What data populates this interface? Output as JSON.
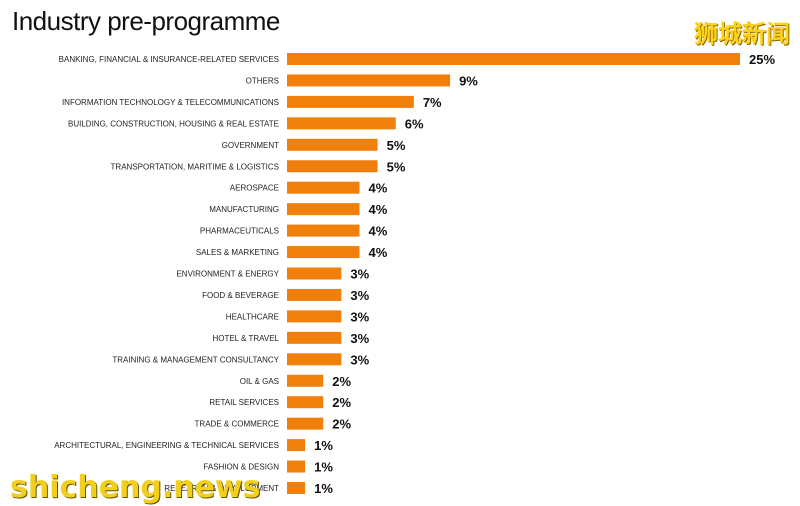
{
  "header": {
    "title": "Industry pre-programme"
  },
  "watermarks": {
    "chinese": "狮城新闻",
    "site": "shicheng.news"
  },
  "colors": {
    "bar": "#f07f0c",
    "text": "#222222"
  },
  "chart_data": {
    "type": "bar",
    "orientation": "horizontal",
    "title": "Industry pre-programme",
    "categories": [
      "BANKING, FINANCIAL & INSURANCE-RELATED SERVICES",
      "OTHERS",
      "INFORMATION TECHNOLOGY & TELECOMMUNICATIONS",
      "BUILDING, CONSTRUCTION, HOUSING & REAL ESTATE",
      "GOVERNMENT",
      "TRANSPORTATION, MARITIME & LOGISTICS",
      "AEROSPACE",
      "MANUFACTURING",
      "PHARMACEUTICALS",
      "SALES & MARKETING",
      "ENVIRONMENT & ENERGY",
      "FOOD & BEVERAGE",
      "HEALTHCARE",
      "HOTEL & TRAVEL",
      "TRAINING & MANAGEMENT CONSULTANCY",
      "OIL & GAS",
      "RETAIL SERVICES",
      "TRADE & COMMERCE",
      "ARCHITECTURAL, ENGINEERING & TECHNICAL SERVICES",
      "FASHION & DESIGN",
      "RESEARCH & DEVELOPMENT"
    ],
    "values": [
      25,
      9,
      7,
      6,
      5,
      5,
      4,
      4,
      4,
      4,
      3,
      3,
      3,
      3,
      3,
      2,
      2,
      2,
      1,
      1,
      1
    ],
    "value_labels": [
      "25%",
      "9%",
      "7%",
      "6%",
      "5%",
      "5%",
      "4%",
      "4%",
      "4%",
      "4%",
      "3%",
      "3%",
      "3%",
      "3%",
      "3%",
      "2%",
      "2%",
      "2%",
      "1%",
      "1%",
      "1%"
    ],
    "unit": "%",
    "xlim": [
      0,
      25
    ],
    "grid": false,
    "legend": "none"
  }
}
